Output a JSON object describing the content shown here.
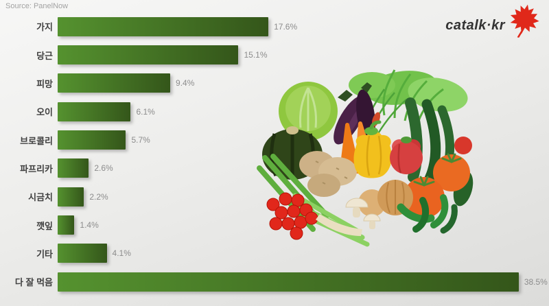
{
  "source_label": "Source: PanelNow",
  "logo": {
    "text": "catalk·kr",
    "text_color": "#333333",
    "leaf_color": "#e0281a"
  },
  "chart_data": {
    "type": "bar",
    "orientation": "horizontal",
    "categories": [
      "가지",
      "당근",
      "피망",
      "오이",
      "브로콜리",
      "파프리카",
      "시금치",
      "깻잎",
      "기타",
      "다 잘 먹음"
    ],
    "values": [
      17.6,
      15.1,
      9.4,
      6.1,
      5.7,
      2.6,
      2.2,
      1.4,
      4.1,
      38.5
    ],
    "value_labels": [
      "17.6%",
      "15.1%",
      "9.4%",
      "6.1%",
      "5.7%",
      "2.6%",
      "2.2%",
      "1.4%",
      "4.1%",
      "38.5%"
    ],
    "xlim": [
      0,
      40
    ],
    "grid": false,
    "legend": "none",
    "bar_gradient": [
      "#55922f",
      "#34561a"
    ],
    "category_label_color": "#3f3f3f",
    "value_label_color": "#8c8c8c"
  },
  "illustration": {
    "name": "vegetables-illustration"
  }
}
